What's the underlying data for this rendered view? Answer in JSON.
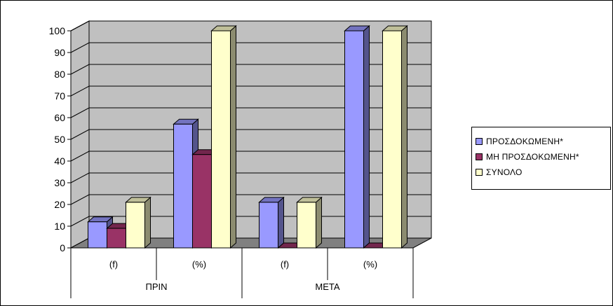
{
  "chart_data": {
    "type": "bar",
    "categories": [
      "(f)",
      "(%)",
      "(f)",
      "(%)"
    ],
    "groups": [
      {
        "label": "ΠΡΙΝ",
        "categories": [
          "(f)",
          "(%)"
        ]
      },
      {
        "label": "ΜΕΤΑ",
        "categories": [
          "(f)",
          "(%)"
        ]
      }
    ],
    "series": [
      {
        "name": "ΠΡΟΣΔΟΚΩΜΕΝΗ*",
        "values": [
          12,
          57,
          21,
          100
        ],
        "color": "#9999FF"
      },
      {
        "name": "ΜΗ ΠΡΟΣΔΟΚΩΜΕΝΗ*",
        "values": [
          9,
          43,
          0,
          0
        ],
        "color": "#993366"
      },
      {
        "name": "ΣΥΝΟΛΟ",
        "values": [
          21,
          100,
          21,
          100
        ],
        "color": "#FFFFCC"
      }
    ],
    "ylim": [
      0,
      100
    ],
    "yticks": [
      0,
      10,
      20,
      30,
      40,
      50,
      60,
      70,
      80,
      90,
      100
    ],
    "title": "",
    "xlabel": "",
    "ylabel": "",
    "grid": true,
    "legend_position": "right",
    "colors": {
      "wall": "#C0C0C0",
      "floor": "#808080",
      "gridline": "#000000"
    }
  }
}
